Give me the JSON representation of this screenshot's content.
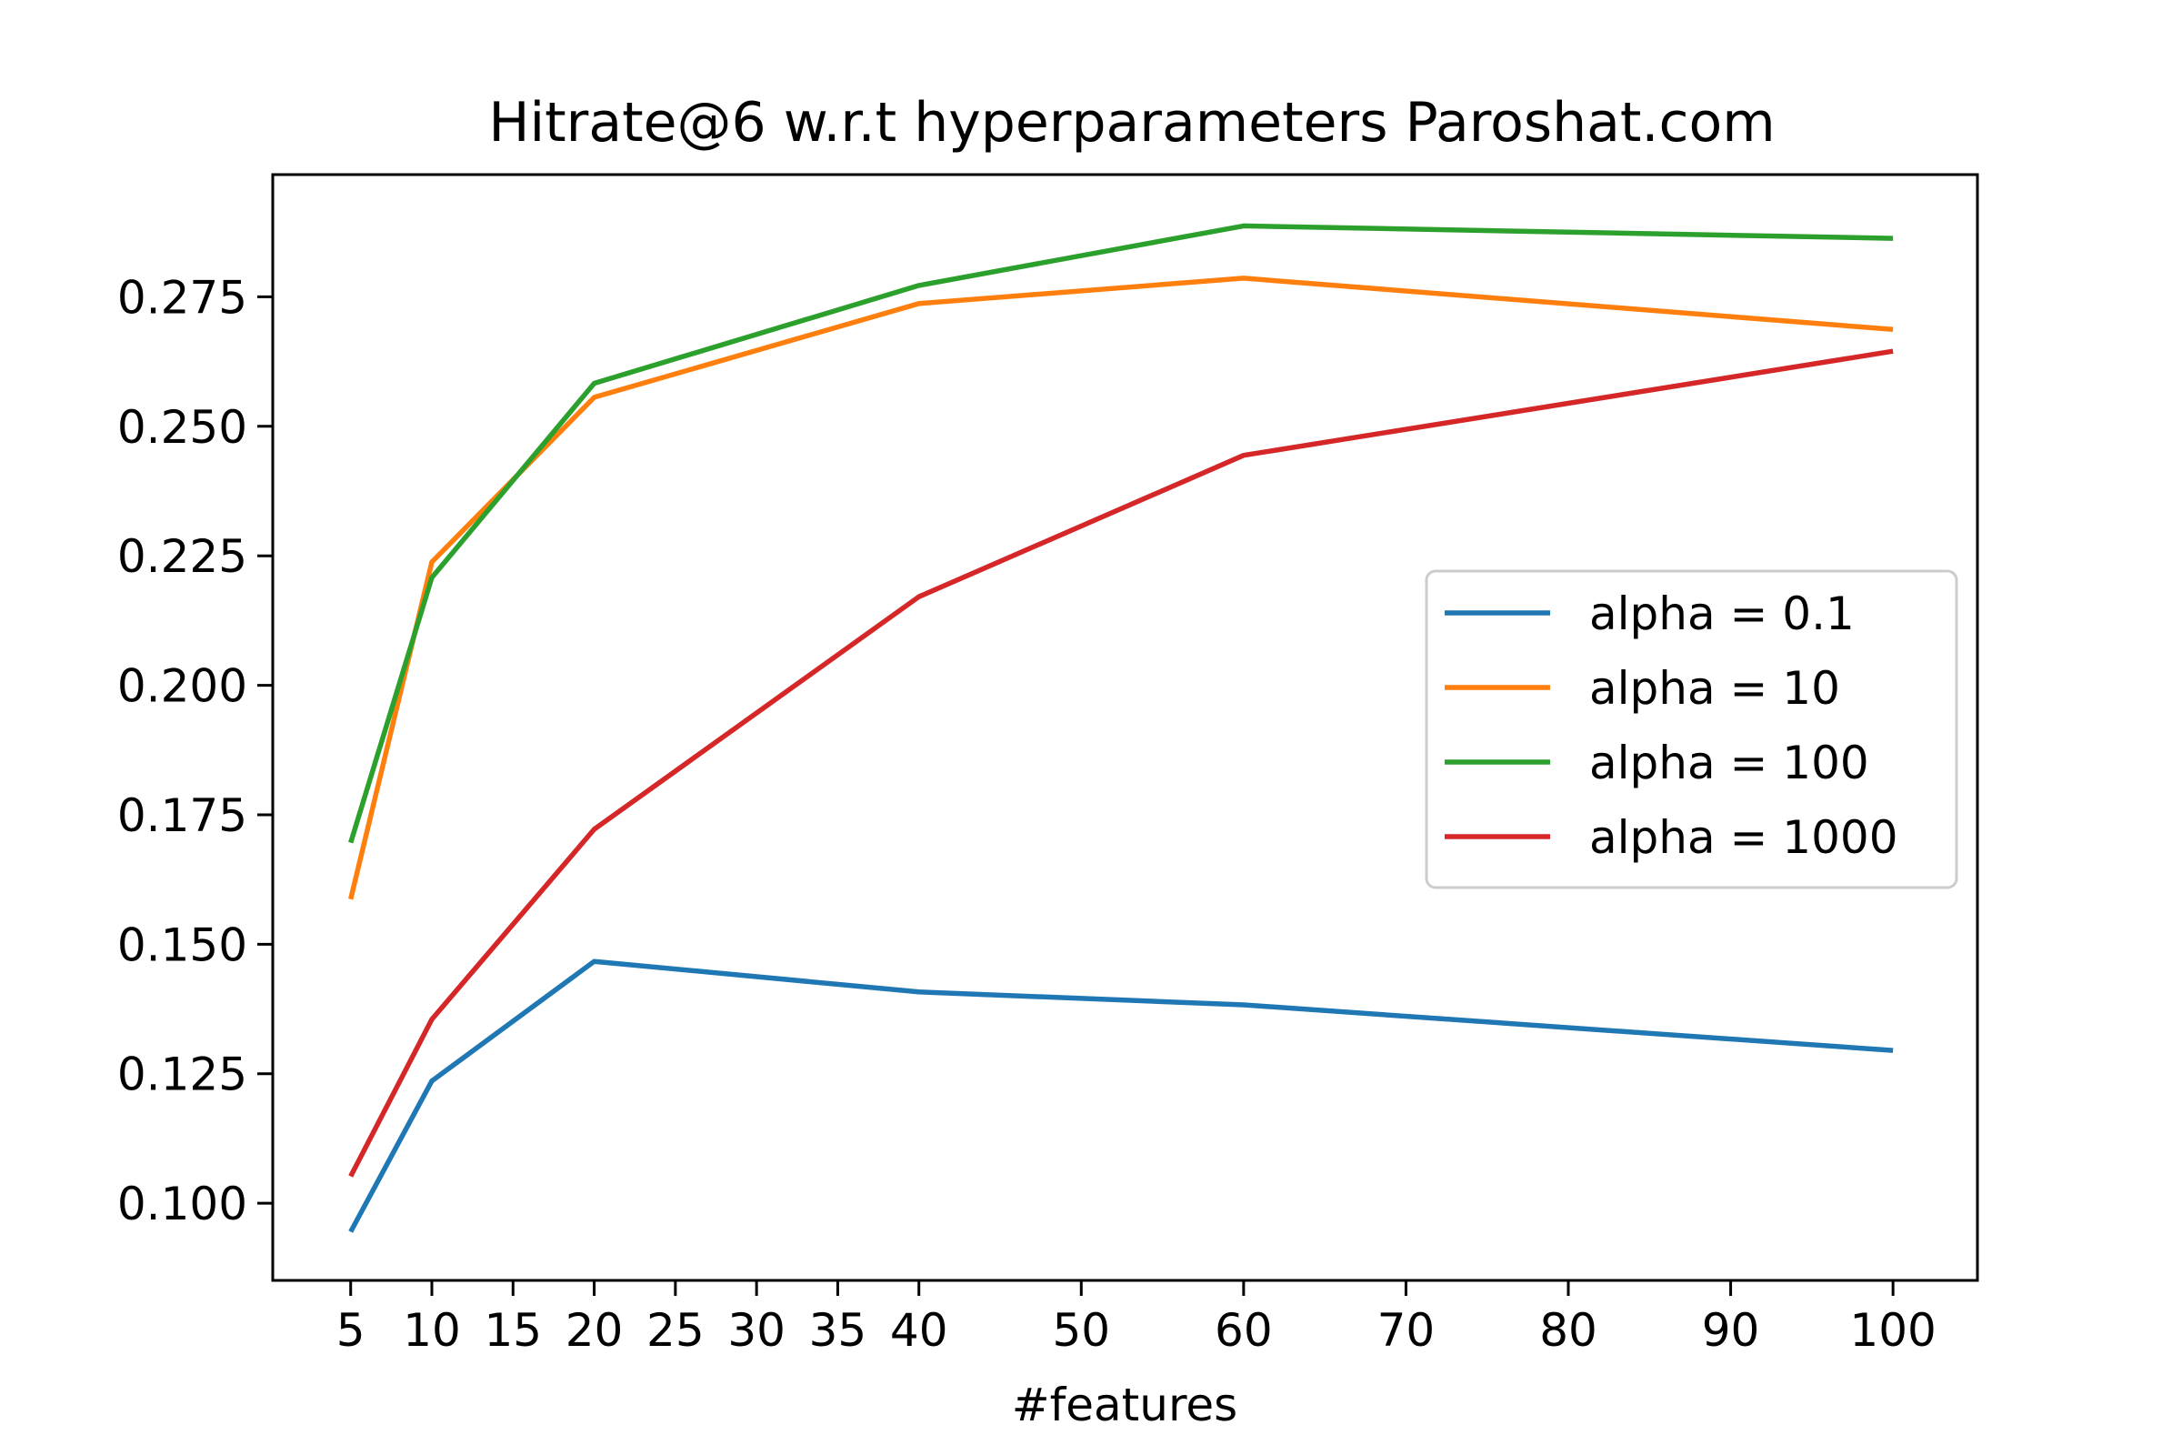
{
  "chart_data": {
    "type": "line",
    "title": "Hitrate@6 w.r.t hyperparameters Paroshat.com",
    "xlabel": "#features",
    "ylabel": "",
    "x": [
      5,
      10,
      20,
      40,
      60,
      100
    ],
    "xticks": [
      5,
      10,
      15,
      20,
      25,
      30,
      35,
      40,
      50,
      60,
      70,
      80,
      90,
      100
    ],
    "xlim": [
      0.2,
      105.2
    ],
    "ylim": [
      0.0851,
      0.2986
    ],
    "yticks": [
      0.1,
      0.125,
      0.15,
      0.175,
      0.2,
      0.225,
      0.25,
      0.275
    ],
    "ytick_labels": [
      "0.100",
      "0.125",
      "0.150",
      "0.175",
      "0.200",
      "0.225",
      "0.250",
      "0.275"
    ],
    "grid": false,
    "legend_position": "center-right",
    "series": [
      {
        "name": "alpha = 0.1",
        "color": "#1f77b4",
        "values": [
          0.0945,
          0.1236,
          0.1467,
          0.1408,
          0.1383,
          0.1295
        ]
      },
      {
        "name": "alpha = 10",
        "color": "#ff7f0e",
        "values": [
          0.1587,
          0.2238,
          0.2556,
          0.2737,
          0.2786,
          0.2687
        ]
      },
      {
        "name": "alpha = 100",
        "color": "#2ca02c",
        "values": [
          0.1696,
          0.2208,
          0.2583,
          0.2772,
          0.2887,
          0.2863
        ]
      },
      {
        "name": "alpha = 1000",
        "color": "#d62728",
        "values": [
          0.1052,
          0.1355,
          0.1722,
          0.2171,
          0.2444,
          0.2645
        ]
      }
    ]
  }
}
